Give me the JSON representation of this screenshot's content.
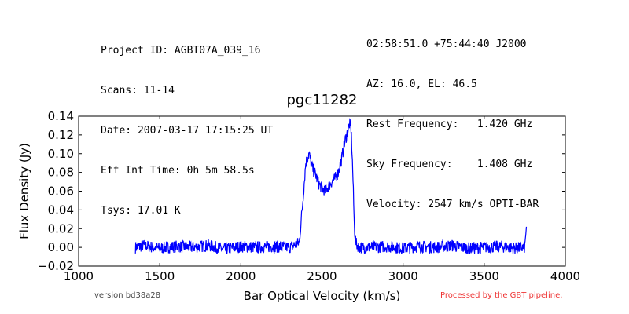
{
  "header": {
    "left_lines": [
      "Project ID: AGBT07A_039_16",
      "Scans: 11-14",
      "Date: 2007-03-17 17:15:25 UT",
      "Eff Int Time: 0h 5m 58.5s",
      "Tsys: 17.01 K"
    ],
    "right_lines": [
      "02:58:51.0 +75:44:40 J2000",
      "AZ: 16.0, EL: 46.5",
      "Rest Frequency:   1.420 GHz",
      "Sky Frequency:    1.408 GHz",
      "Velocity: 2547 km/s OPTI-BAR"
    ]
  },
  "footer": {
    "version": "version bd38a28",
    "processed": "Processed by the GBT pipeline.",
    "processed_color": "#ee3333"
  },
  "chart_data": {
    "type": "line",
    "title": "pgc11282",
    "xlabel": "Bar Optical Velocity (km/s)",
    "ylabel": "Flux Density (Jy)",
    "xlim": [
      1000,
      4000
    ],
    "ylim": [
      -0.02,
      0.14
    ],
    "xticks": [
      1000,
      1500,
      2000,
      2500,
      3000,
      3500,
      4000
    ],
    "yticks": [
      -0.02,
      0.0,
      0.02,
      0.04,
      0.06,
      0.08,
      0.1,
      0.12,
      0.14
    ],
    "ytick_labels": [
      "−0.02",
      "0.00",
      "0.02",
      "0.04",
      "0.06",
      "0.08",
      "0.10",
      "0.12",
      "0.14"
    ],
    "grid": false,
    "line_color": "#0000ff",
    "series": [
      {
        "x": [
          1350,
          1400,
          1500,
          1600,
          1700,
          1800,
          1900,
          2000,
          2100,
          2200,
          2300,
          2360,
          2380,
          2400,
          2420,
          2440,
          2460,
          2480,
          2500,
          2520,
          2540,
          2560,
          2580,
          2600,
          2620,
          2640,
          2660,
          2670,
          2680,
          2690,
          2700,
          2710,
          2730,
          2800,
          2900,
          3000,
          3100,
          3200,
          3300,
          3400,
          3500,
          3600,
          3700,
          3750,
          3760
        ],
        "y": [
          0.0,
          0.002,
          -0.001,
          0.001,
          0.0,
          0.002,
          -0.002,
          0.001,
          0.0,
          0.001,
          0.0,
          0.005,
          0.045,
          0.09,
          0.1,
          0.085,
          0.078,
          0.068,
          0.063,
          0.06,
          0.065,
          0.07,
          0.073,
          0.08,
          0.093,
          0.112,
          0.125,
          0.132,
          0.125,
          0.08,
          0.02,
          0.004,
          0.0,
          0.0,
          0.001,
          -0.001,
          0.001,
          0.0,
          0.002,
          -0.001,
          0.0,
          0.001,
          -0.001,
          0.0,
          0.022
        ]
      }
    ]
  }
}
